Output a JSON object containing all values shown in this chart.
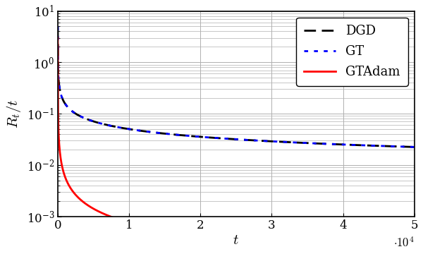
{
  "title": "",
  "xlabel": "$t$",
  "ylabel": "$R_t/t$",
  "xlim": [
    0,
    50000
  ],
  "ylim": [
    0.001,
    10
  ],
  "xticks": [
    0,
    10000,
    20000,
    30000,
    40000,
    50000
  ],
  "xtick_labels": [
    "0",
    "1",
    "2",
    "3",
    "4",
    "5"
  ],
  "xscale_offset_text": "$\\cdot10^4$",
  "legend": [
    {
      "label": "GT",
      "color": "#0000ff",
      "linestyle": "dotted",
      "linewidth": 2.0
    },
    {
      "label": "GTAdam",
      "color": "#ff0000",
      "linestyle": "solid",
      "linewidth": 2.0
    },
    {
      "label": "DGD",
      "color": "#000000",
      "linestyle": "dashed",
      "linewidth": 2.0
    }
  ],
  "n_points": 1000,
  "GT_A": 5.0,
  "GT_alpha": 0.5,
  "GTAdam_A": 3.0,
  "GTAdam_alpha": 0.9,
  "DGD_A": 5.0,
  "DGD_alpha": 0.5,
  "background_color": "#ffffff",
  "grid_color": "#b0b0b0"
}
